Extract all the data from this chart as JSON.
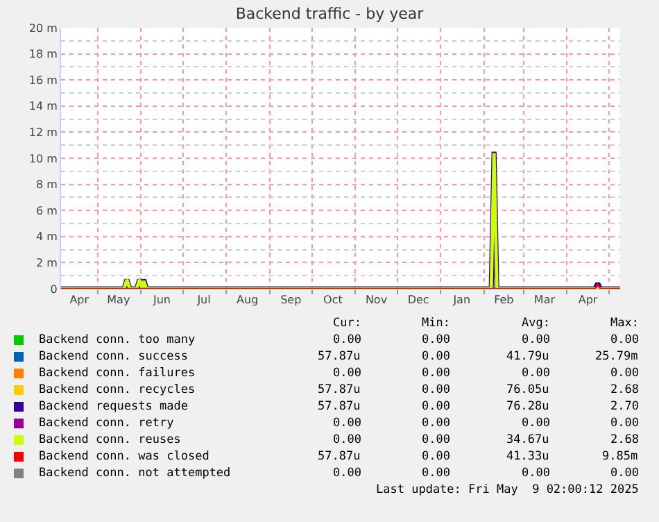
{
  "chart_data": {
    "type": "line",
    "title": "Backend traffic - by year",
    "x": [
      "2024-04-05",
      "2024-05-20",
      "2024-05-22",
      "2024-05-24",
      "2024-05-29",
      "2024-05-31",
      "2024-06-02",
      "2024-06-03",
      "2024-06-05",
      "2024-12-01",
      "2025-02-06",
      "2025-02-08",
      "2025-02-10",
      "2025-04-21",
      "2025-04-23",
      "2025-04-25",
      "2025-05-09"
    ],
    "series": [
      {
        "name": "Backend conn. too many",
        "color": "#00cc00",
        "values": [
          null,
          null,
          null,
          null,
          null,
          null,
          null,
          null,
          null,
          null,
          null,
          null,
          null,
          null,
          null,
          null,
          null
        ]
      },
      {
        "name": "Backend conn. success",
        "color": "#0066b3",
        "values": [
          null,
          null,
          null,
          null,
          null,
          null,
          null,
          null,
          null,
          null,
          null,
          null,
          null,
          null,
          null,
          null,
          null
        ]
      },
      {
        "name": "Backend conn. failures",
        "color": "#ff8000",
        "values": [
          null,
          null,
          null,
          null,
          null,
          null,
          null,
          null,
          null,
          null,
          null,
          null,
          null,
          null,
          null,
          null,
          null
        ]
      },
      {
        "name": "Backend conn. recycles",
        "color": "#ffcc00",
        "values": [
          null,
          null,
          null,
          null,
          null,
          null,
          null,
          null,
          null,
          null,
          null,
          null,
          null,
          null,
          null,
          null,
          null
        ]
      },
      {
        "name": "Backend requests made",
        "color": "#330099",
        "values": [
          0,
          0,
          0.7,
          0,
          0,
          0.7,
          0,
          0.7,
          0,
          0,
          0,
          10.5,
          0,
          0,
          0.4,
          0,
          0
        ]
      },
      {
        "name": "Backend conn. retry",
        "color": "#990099",
        "values": [
          null,
          null,
          null,
          null,
          null,
          null,
          null,
          null,
          null,
          null,
          null,
          null,
          null,
          null,
          null,
          null,
          null
        ]
      },
      {
        "name": "Backend conn. reuses",
        "color": "#ccff00",
        "values": [
          0,
          0,
          0.7,
          0,
          0,
          0.7,
          0,
          0.6,
          0,
          0,
          0,
          10.4,
          0,
          0,
          0,
          0,
          0
        ]
      },
      {
        "name": "Backend conn. was closed",
        "color": "#ff0000",
        "values": [
          0,
          0,
          0,
          0,
          0,
          0,
          0,
          0,
          0,
          0,
          0,
          0,
          0,
          0,
          0.3,
          0,
          0
        ]
      },
      {
        "name": "Backend conn. not attempted",
        "color": "#808080",
        "values": [
          null,
          null,
          null,
          null,
          null,
          null,
          null,
          null,
          null,
          null,
          null,
          null,
          null,
          null,
          null,
          null,
          null
        ]
      }
    ],
    "xlim": [
      "2024-04-05",
      "2025-05-09"
    ],
    "xticks": [
      {
        "value": "2024-04-18",
        "label": "Apr"
      },
      {
        "value": "2024-05-01",
        "label": null
      },
      {
        "value": "2024-05-16",
        "label": "May"
      },
      {
        "value": "2024-06-01",
        "label": null
      },
      {
        "value": "2024-06-16",
        "label": "Jun"
      },
      {
        "value": "2024-07-01",
        "label": null
      },
      {
        "value": "2024-07-16",
        "label": "Jul"
      },
      {
        "value": "2024-08-01",
        "label": null
      },
      {
        "value": "2024-08-16",
        "label": "Aug"
      },
      {
        "value": "2024-09-01",
        "label": null
      },
      {
        "value": "2024-09-16",
        "label": "Sep"
      },
      {
        "value": "2024-10-01",
        "label": null
      },
      {
        "value": "2024-10-16",
        "label": "Oct"
      },
      {
        "value": "2024-11-01",
        "label": null
      },
      {
        "value": "2024-11-16",
        "label": "Nov"
      },
      {
        "value": "2024-12-01",
        "label": null
      },
      {
        "value": "2024-12-16",
        "label": "Dec"
      },
      {
        "value": "2025-01-01",
        "label": null
      },
      {
        "value": "2025-01-16",
        "label": "Jan"
      },
      {
        "value": "2025-02-01",
        "label": null
      },
      {
        "value": "2025-02-15",
        "label": "Feb"
      },
      {
        "value": "2025-03-01",
        "label": null
      },
      {
        "value": "2025-03-16",
        "label": "Mar"
      },
      {
        "value": "2025-04-01",
        "label": null
      },
      {
        "value": "2025-04-16",
        "label": "Apr"
      },
      {
        "value": "2025-05-01",
        "label": null
      }
    ],
    "ylim": [
      0,
      20
    ],
    "yticks": [
      {
        "value": 0,
        "label": "0"
      },
      {
        "value": 1,
        "label": null
      },
      {
        "value": 2,
        "label": "2 m"
      },
      {
        "value": 3,
        "label": null
      },
      {
        "value": 4,
        "label": "4 m"
      },
      {
        "value": 5,
        "label": null
      },
      {
        "value": 6,
        "label": "6 m"
      },
      {
        "value": 7,
        "label": null
      },
      {
        "value": 8,
        "label": "8 m"
      },
      {
        "value": 9,
        "label": null
      },
      {
        "value": 10,
        "label": "10 m"
      },
      {
        "value": 11,
        "label": null
      },
      {
        "value": 12,
        "label": "12 m"
      },
      {
        "value": 13,
        "label": null
      },
      {
        "value": 14,
        "label": "14 m"
      },
      {
        "value": 15,
        "label": null
      },
      {
        "value": 16,
        "label": "16 m"
      },
      {
        "value": 17,
        "label": null
      },
      {
        "value": 18,
        "label": "18 m"
      },
      {
        "value": 19,
        "label": null
      },
      {
        "value": 20,
        "label": "20 m"
      }
    ],
    "grid": true,
    "legend": "bottom left",
    "annotations": [
      "Cur:",
      "Min:",
      "Avg:",
      "Max:",
      "0.00",
      "0.00",
      "0.00",
      "0.00",
      "57.87u",
      "0.00",
      "41.79u",
      "25.79m",
      "0.00",
      "0.00",
      "0.00",
      "0.00",
      "57.87u",
      "0.00",
      "76.05u",
      "2.68",
      "57.87u",
      "0.00",
      "76.28u",
      "2.70",
      "0.00",
      "0.00",
      "0.00",
      "0.00",
      "0.00",
      "0.00",
      "34.67u",
      "2.68",
      "57.87u",
      "0.00",
      "41.33u",
      "9.85m",
      "0.00",
      "0.00",
      "0.00",
      "0.00",
      "Last update: Fri May  9 02:00:12 2025"
    ]
  }
}
